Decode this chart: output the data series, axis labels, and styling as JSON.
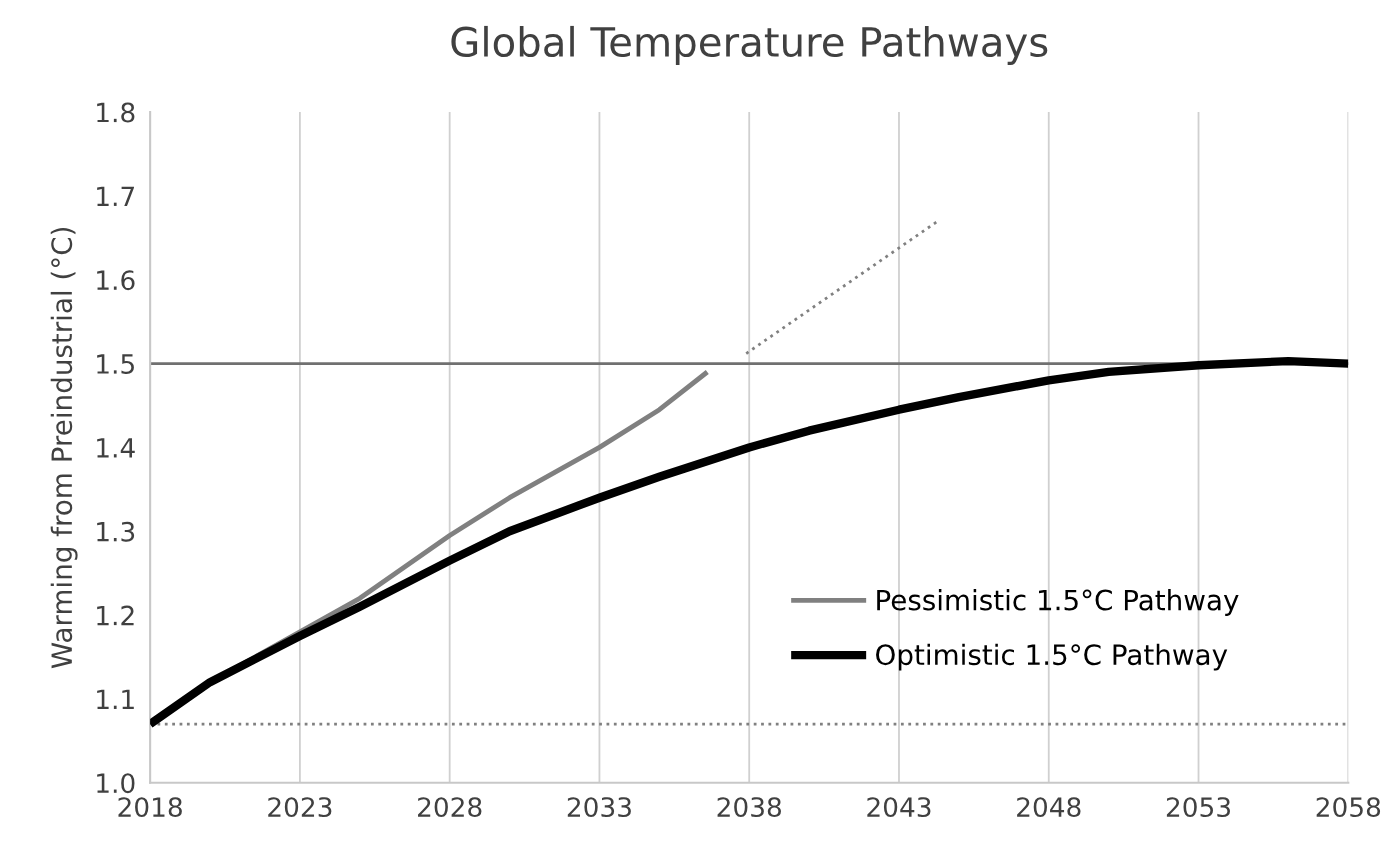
{
  "chart_data": {
    "type": "line",
    "title": "Global Temperature Pathways",
    "ylabel": "Warming from Preindustrial (°C)",
    "xlim": [
      2018,
      2058
    ],
    "xticks": [
      2018,
      2023,
      2028,
      2033,
      2038,
      2043,
      2048,
      2053,
      2058
    ],
    "ylim": [
      1.0,
      1.8
    ],
    "yticks": [
      {
        "value": 1.0,
        "label": "1.0"
      },
      1.1,
      1.2,
      1.3,
      1.4,
      1.5,
      1.6,
      1.7,
      1.8
    ],
    "grid": "x",
    "legend": "bottom right",
    "ref_lines": [
      {
        "axis": "y",
        "value": 1.5,
        "color": "#707070",
        "line_style": "solid"
      },
      {
        "axis": "y",
        "value": 1.07,
        "color": "#808080",
        "line_style": "dotted"
      }
    ],
    "series": [
      {
        "name": "Pessimistic 1.5°C Pathway",
        "color": "#808080",
        "line_style": "solid",
        "x": [
          2018,
          2020,
          2023,
          2025,
          2028,
          2030,
          2031,
          2033,
          2035,
          2036.6
        ],
        "values": [
          1.07,
          1.12,
          1.18,
          1.22,
          1.295,
          1.34,
          1.36,
          1.4,
          1.445,
          1.49
        ]
      },
      {
        "color": "#808080",
        "line_style": "dotted",
        "x": [
          2037.9,
          2044.3
        ],
        "values": [
          1.512,
          1.67
        ]
      },
      {
        "name": "Optimistic 1.5°C Pathway",
        "color": "#000000",
        "line_style": "solid",
        "x": [
          2018,
          2020,
          2023,
          2025,
          2028,
          2030,
          2033,
          2035,
          2038,
          2040,
          2043,
          2045,
          2048,
          2050,
          2053,
          2056,
          2058
        ],
        "values": [
          1.07,
          1.12,
          1.175,
          1.21,
          1.265,
          1.3,
          1.34,
          1.365,
          1.4,
          1.42,
          1.445,
          1.46,
          1.48,
          1.49,
          1.498,
          1.503,
          1.5
        ]
      }
    ]
  }
}
